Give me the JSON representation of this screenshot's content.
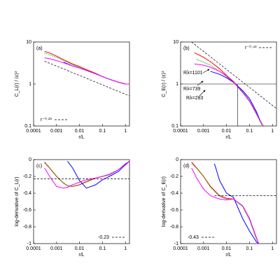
{
  "chart_data": [
    {
      "type": "line",
      "panel_label": "(a)",
      "x_label": "r/L",
      "y_label": "C_L(r) / ⟨ε⟩²",
      "xscale": "log",
      "yscale": "log",
      "xlim": [
        0.0001,
        1.5
      ],
      "ylim": [
        0.1,
        10
      ],
      "xticks": [
        0.0001,
        0.001,
        0.01,
        0.1,
        1
      ],
      "yticks": [
        0.1,
        1,
        10
      ],
      "legend_label": "r⁻⁰·²³",
      "legend_corner": "bottom-left",
      "series": [
        {
          "color": "#ff0000",
          "dash": "solid",
          "x": [
            0.0003,
            0.0005,
            0.001,
            0.002,
            0.005,
            0.01,
            0.02,
            0.05,
            0.1,
            0.2,
            0.5,
            1,
            1.5
          ],
          "values": [
            6,
            5.5,
            4.6,
            3.8,
            3,
            2.6,
            2.2,
            1.8,
            1.5,
            1.3,
            1.1,
            1.0,
            1.0
          ]
        },
        {
          "color": "#00a000",
          "dash": "dotted",
          "x": [
            0.0003,
            0.0005,
            0.001,
            0.002,
            0.005,
            0.01,
            0.02,
            0.05,
            0.1,
            0.2,
            0.5,
            1,
            1.5
          ],
          "values": [
            5.5,
            5.0,
            4.3,
            3.6,
            2.9,
            2.5,
            2.15,
            1.75,
            1.5,
            1.3,
            1.1,
            1.0,
            1.0
          ]
        },
        {
          "color": "#0000ff",
          "dash": "solid",
          "x": [
            0.002,
            0.005,
            0.01,
            0.02,
            0.05,
            0.1,
            0.2,
            0.5,
            1,
            1.5
          ],
          "values": [
            3.3,
            2.7,
            2.4,
            2.1,
            1.75,
            1.5,
            1.3,
            1.1,
            1.0,
            1.0
          ]
        },
        {
          "color": "#ff00ff",
          "dash": "solid",
          "x": [
            0.0003,
            0.0005,
            0.001,
            0.002,
            0.005,
            0.01,
            0.02,
            0.05,
            0.1,
            0.2,
            0.5,
            1,
            1.5
          ],
          "values": [
            4.2,
            4.0,
            3.6,
            3.2,
            2.7,
            2.4,
            2.1,
            1.75,
            1.5,
            1.3,
            1.1,
            1.0,
            1.0
          ]
        },
        {
          "color": "#000000",
          "dash": "dashed",
          "x": [
            0.0003,
            1.5
          ],
          "values": [
            3.5,
            0.52
          ]
        }
      ]
    },
    {
      "type": "line",
      "panel_label": "(b)",
      "x_label": "r/L",
      "y_label": "C_E(r) / ⟨ε⟩²",
      "xscale": "log",
      "yscale": "log",
      "xlim": [
        0.0001,
        1.5
      ],
      "ylim": [
        0.1,
        10
      ],
      "xticks": [
        0.0001,
        0.001,
        0.01,
        0.1,
        1
      ],
      "yticks": [
        0.1,
        1,
        10
      ],
      "legend_label": "r⁻⁰·⁴³",
      "legend_corner": "top-right",
      "hline": 1,
      "vline": 0.03,
      "annotations": [
        "Rλ=1101",
        "Rλ=739",
        "Rλ=283"
      ],
      "series": [
        {
          "color": "#ff0000",
          "dash": "solid",
          "x": [
            0.0004,
            0.0006,
            0.001,
            0.002,
            0.005,
            0.01,
            0.02,
            0.05,
            0.1,
            0.2,
            0.3,
            0.4
          ],
          "values": [
            5.5,
            5,
            4.3,
            3.4,
            2.3,
            1.6,
            1.15,
            0.65,
            0.4,
            0.2,
            0.13,
            0.1
          ]
        },
        {
          "color": "#00a000",
          "dash": "dotted",
          "x": [
            0.0005,
            0.0007,
            0.001,
            0.002,
            0.005,
            0.01,
            0.02,
            0.05,
            0.1,
            0.2,
            0.3,
            0.4
          ],
          "values": [
            3.8,
            3.6,
            3.3,
            2.8,
            2.0,
            1.5,
            1.1,
            0.62,
            0.38,
            0.19,
            0.12,
            0.09
          ]
        },
        {
          "color": "#0000ff",
          "dash": "solid",
          "x": [
            0.002,
            0.005,
            0.01,
            0.02,
            0.05,
            0.1,
            0.2,
            0.3
          ],
          "values": [
            2.0,
            1.7,
            1.4,
            1.1,
            0.7,
            0.45,
            0.22,
            0.13
          ]
        },
        {
          "color": "#ff00ff",
          "dash": "solid",
          "x": [
            0.0004,
            0.001,
            0.002,
            0.005,
            0.01,
            0.02,
            0.05,
            0.1,
            0.2,
            0.3,
            0.4
          ],
          "values": [
            3.0,
            2.8,
            2.5,
            2.0,
            1.55,
            1.12,
            0.64,
            0.4,
            0.2,
            0.13,
            0.1
          ]
        },
        {
          "color": "#000000",
          "dash": "dashed",
          "x": [
            0.0003,
            1.5
          ],
          "values": [
            10,
            0.26
          ]
        }
      ]
    },
    {
      "type": "line",
      "panel_label": "(c)",
      "x_label": "r/L",
      "y_label": "log-derivative of C_L(r)",
      "xscale": "log",
      "yscale": "linear",
      "xlim": [
        0.0001,
        1.5
      ],
      "ylim": [
        -1,
        0
      ],
      "xticks": [
        0.0001,
        0.001,
        0.01,
        0.1,
        1
      ],
      "yticks": [
        0,
        -0.2,
        -0.4,
        -0.6,
        -0.8,
        -1
      ],
      "legend_label": "-0.23",
      "legend_corner": "bottom-right",
      "series": [
        {
          "color": "#ff0000",
          "dash": "solid",
          "x": [
            0.0003,
            0.0005,
            0.001,
            0.002,
            0.003,
            0.005,
            0.01,
            0.02,
            0.05,
            0.1,
            0.2,
            0.5,
            1,
            1.5
          ],
          "values": [
            -0.03,
            -0.1,
            -0.2,
            -0.28,
            -0.31,
            -0.32,
            -0.3,
            -0.26,
            -0.22,
            -0.2,
            -0.18,
            -0.12,
            -0.05,
            -0.02
          ]
        },
        {
          "color": "#00a000",
          "dash": "dotted",
          "x": [
            0.0003,
            0.0005,
            0.001,
            0.002,
            0.003,
            0.005,
            0.01,
            0.02,
            0.05,
            0.1,
            0.2,
            0.5,
            1,
            1.5
          ],
          "values": [
            -0.04,
            -0.1,
            -0.2,
            -0.28,
            -0.31,
            -0.32,
            -0.3,
            -0.27,
            -0.22,
            -0.2,
            -0.17,
            -0.12,
            -0.05,
            -0.02
          ]
        },
        {
          "color": "#0000ff",
          "dash": "solid",
          "x": [
            0.003,
            0.005,
            0.01,
            0.02,
            0.05,
            0.1,
            0.2,
            0.5,
            1,
            1.5
          ],
          "values": [
            -0.02,
            -0.1,
            -0.25,
            -0.34,
            -0.3,
            -0.24,
            -0.2,
            -0.14,
            -0.06,
            -0.02
          ]
        },
        {
          "color": "#ff00ff",
          "dash": "solid",
          "x": [
            0.0003,
            0.0005,
            0.001,
            0.002,
            0.003,
            0.005,
            0.01,
            0.02,
            0.05,
            0.1,
            0.2,
            0.5,
            1,
            1.5
          ],
          "values": [
            -0.1,
            -0.2,
            -0.32,
            -0.34,
            -0.33,
            -0.3,
            -0.27,
            -0.24,
            -0.22,
            -0.2,
            -0.18,
            -0.12,
            -0.05,
            -0.02
          ]
        },
        {
          "color": "#000000",
          "dash": "dashed",
          "x": [
            0.0001,
            1.5
          ],
          "values": [
            -0.23,
            -0.23
          ]
        }
      ]
    },
    {
      "type": "line",
      "panel_label": "(d)",
      "x_label": "r/L",
      "y_label": "log-derivative of C_E(r)",
      "xscale": "log",
      "yscale": "linear",
      "xlim": [
        0.0001,
        1.5
      ],
      "ylim": [
        -1,
        0
      ],
      "xticks": [
        0.0001,
        0.001,
        0.01,
        0.1,
        1
      ],
      "yticks": [
        0,
        -0.2,
        -0.4,
        -0.6,
        -0.8,
        -1
      ],
      "legend_label": "-0.43",
      "legend_corner": "bottom-left",
      "series": [
        {
          "color": "#ff0000",
          "dash": "solid",
          "x": [
            0.0003,
            0.0005,
            0.001,
            0.002,
            0.005,
            0.01,
            0.02,
            0.05,
            0.1,
            0.2,
            0.25
          ],
          "values": [
            -0.03,
            -0.1,
            -0.2,
            -0.32,
            -0.43,
            -0.46,
            -0.47,
            -0.55,
            -0.7,
            -0.93,
            -1
          ]
        },
        {
          "color": "#00a000",
          "dash": "dotted",
          "x": [
            0.0003,
            0.0005,
            0.001,
            0.002,
            0.005,
            0.01,
            0.02,
            0.05,
            0.1,
            0.2,
            0.25
          ],
          "values": [
            -0.05,
            -0.1,
            -0.2,
            -0.33,
            -0.44,
            -0.47,
            -0.47,
            -0.56,
            -0.72,
            -0.95,
            -1
          ]
        },
        {
          "color": "#0000ff",
          "dash": "solid",
          "x": [
            0.003,
            0.005,
            0.01,
            0.02,
            0.05,
            0.1,
            0.2,
            0.25
          ],
          "values": [
            -0.05,
            -0.25,
            -0.4,
            -0.45,
            -0.7,
            -0.85,
            -0.98,
            -1
          ]
        },
        {
          "color": "#ff00ff",
          "dash": "solid",
          "x": [
            0.0003,
            0.0005,
            0.001,
            0.002,
            0.005,
            0.01,
            0.02,
            0.05,
            0.1,
            0.2,
            0.25
          ],
          "values": [
            -0.1,
            -0.22,
            -0.35,
            -0.43,
            -0.47,
            -0.48,
            -0.47,
            -0.55,
            -0.7,
            -0.93,
            -1
          ]
        },
        {
          "color": "#000000",
          "dash": "dashed",
          "x": [
            0.003,
            1.5
          ],
          "values": [
            -0.43,
            -0.43
          ]
        }
      ]
    }
  ]
}
